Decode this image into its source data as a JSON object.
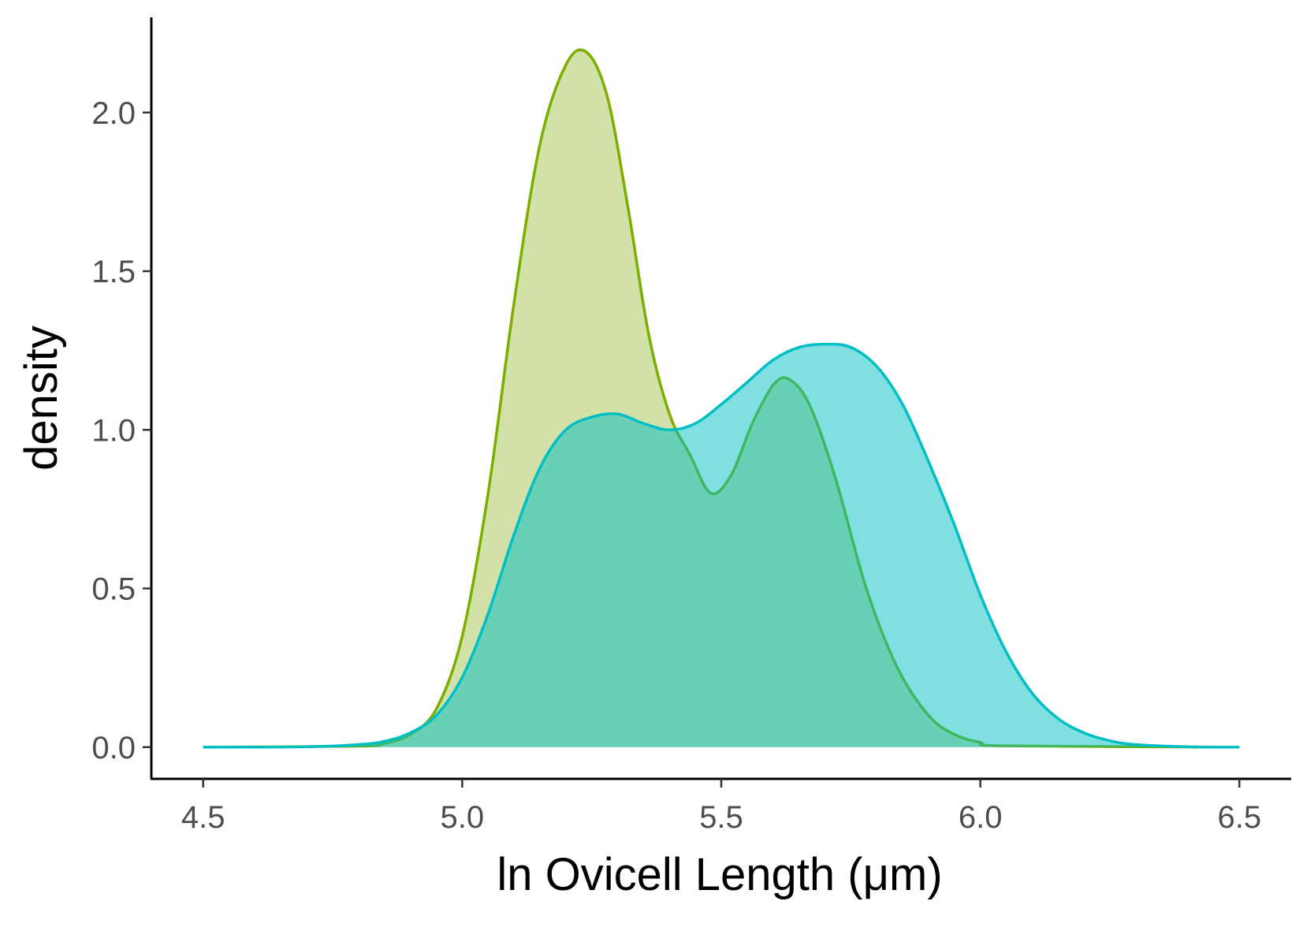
{
  "chart_data": {
    "type": "area",
    "xlabel": "ln Ovicell Length (μm)",
    "ylabel": "density",
    "xlim": [
      4.4,
      6.6
    ],
    "ylim": [
      -0.1,
      2.3
    ],
    "x_ticks": [
      "4.5",
      "5.0",
      "5.5",
      "6.0",
      "6.5"
    ],
    "y_ticks": [
      "0.0",
      "0.5",
      "1.0",
      "1.5",
      "2.0"
    ],
    "grid": false,
    "legend": "none",
    "series": [
      {
        "color": "#7cae00",
        "fill": "#a3c44f",
        "x": [
          4.5,
          4.8,
          4.85,
          4.9,
          4.95,
          5.0,
          5.05,
          5.1,
          5.15,
          5.2,
          5.24,
          5.28,
          5.32,
          5.36,
          5.4,
          5.44,
          5.48,
          5.52,
          5.56,
          5.6,
          5.63,
          5.67,
          5.72,
          5.78,
          5.84,
          5.9,
          5.95,
          6.0,
          6.05,
          6.5
        ],
        "y": [
          0.0,
          0.003,
          0.012,
          0.04,
          0.12,
          0.35,
          0.8,
          1.4,
          1.9,
          2.15,
          2.19,
          2.05,
          1.7,
          1.3,
          1.05,
          0.92,
          0.8,
          0.86,
          1.02,
          1.14,
          1.16,
          1.08,
          0.85,
          0.5,
          0.25,
          0.1,
          0.04,
          0.015,
          0.004,
          0.0
        ]
      },
      {
        "color": "#00bfc4",
        "fill": "#00bfc4",
        "x": [
          4.5,
          4.7,
          4.8,
          4.85,
          4.9,
          4.95,
          5.0,
          5.05,
          5.1,
          5.15,
          5.2,
          5.25,
          5.3,
          5.35,
          5.4,
          5.45,
          5.5,
          5.55,
          5.6,
          5.65,
          5.7,
          5.75,
          5.8,
          5.85,
          5.9,
          5.95,
          6.0,
          6.05,
          6.1,
          6.15,
          6.2,
          6.25,
          6.3,
          6.4,
          6.5
        ],
        "y": [
          0.0,
          0.001,
          0.008,
          0.018,
          0.045,
          0.1,
          0.22,
          0.42,
          0.67,
          0.88,
          1.0,
          1.04,
          1.05,
          1.02,
          1.0,
          1.02,
          1.08,
          1.15,
          1.22,
          1.26,
          1.27,
          1.26,
          1.2,
          1.08,
          0.9,
          0.7,
          0.48,
          0.3,
          0.17,
          0.09,
          0.045,
          0.02,
          0.008,
          0.001,
          0.0
        ]
      }
    ]
  }
}
